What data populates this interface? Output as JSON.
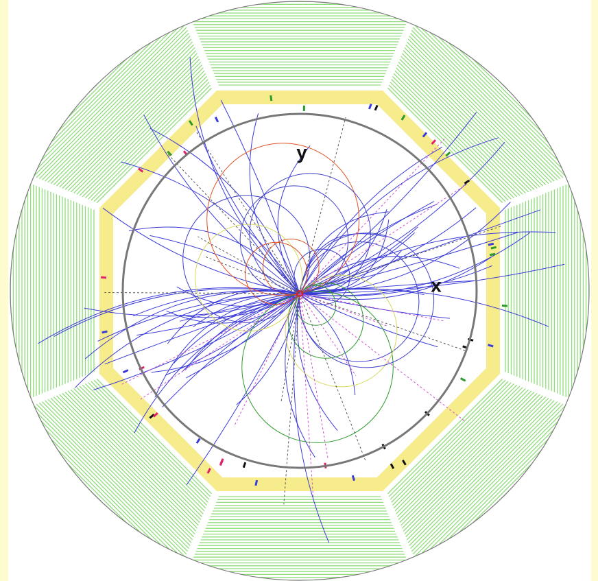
{
  "axis_labels": {
    "y": "y",
    "x": "x"
  }
}
